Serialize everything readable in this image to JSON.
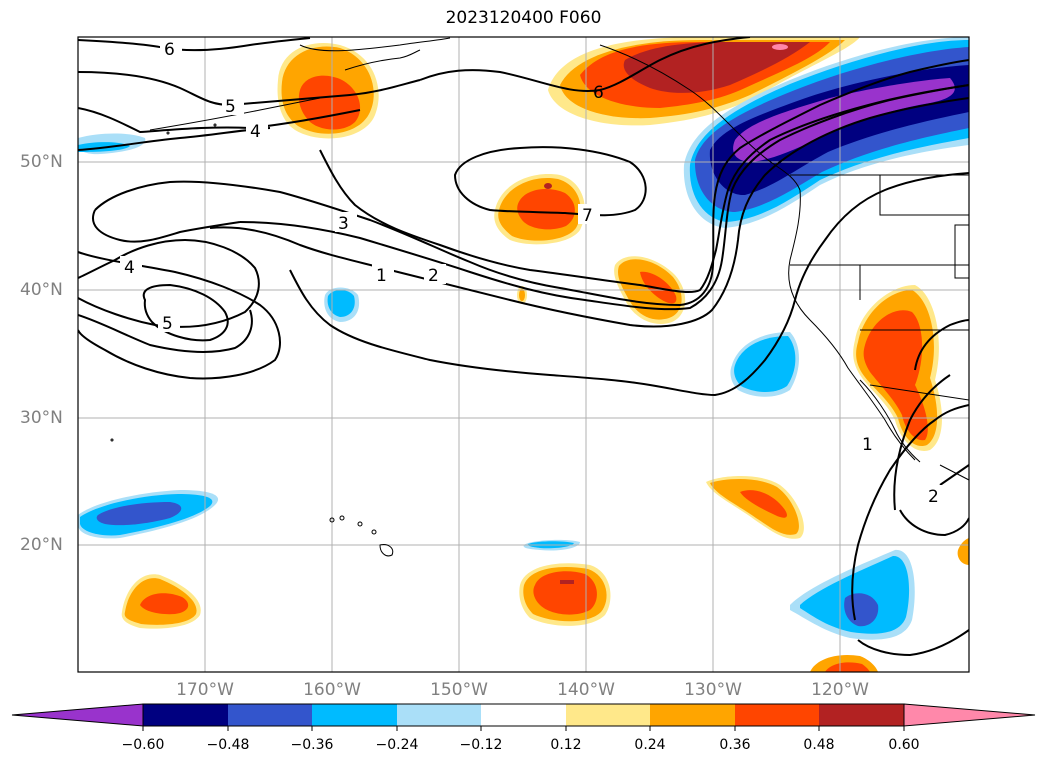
{
  "title": "2023120400 F060",
  "map": {
    "lat_labels": [
      "50°N",
      "40°N",
      "30°N",
      "20°N"
    ],
    "lon_labels": [
      "170°W",
      "160°W",
      "150°W",
      "140°W",
      "130°W",
      "120°W"
    ],
    "contour_labels": [
      "6",
      "5",
      "4",
      "3",
      "1",
      "2",
      "7",
      "4",
      "5",
      "6",
      "1",
      "2"
    ]
  },
  "colorbar": {
    "ticks": [
      "−0.60",
      "−0.48",
      "−0.36",
      "−0.24",
      "−0.12",
      "0.12",
      "0.24",
      "0.36",
      "0.48",
      "0.60"
    ],
    "colors": {
      "neg_extend": "#9933cc",
      "neg_060": "#000080",
      "neg_048": "#3355cc",
      "neg_036": "#00bbff",
      "neg_024": "#aadff8",
      "neutral": "#ffffff",
      "pos_012": "#ffe88a",
      "pos_024": "#ffa500",
      "pos_036": "#ff4500",
      "pos_048": "#b22222",
      "pos_extend": "#ff88aa"
    }
  }
}
